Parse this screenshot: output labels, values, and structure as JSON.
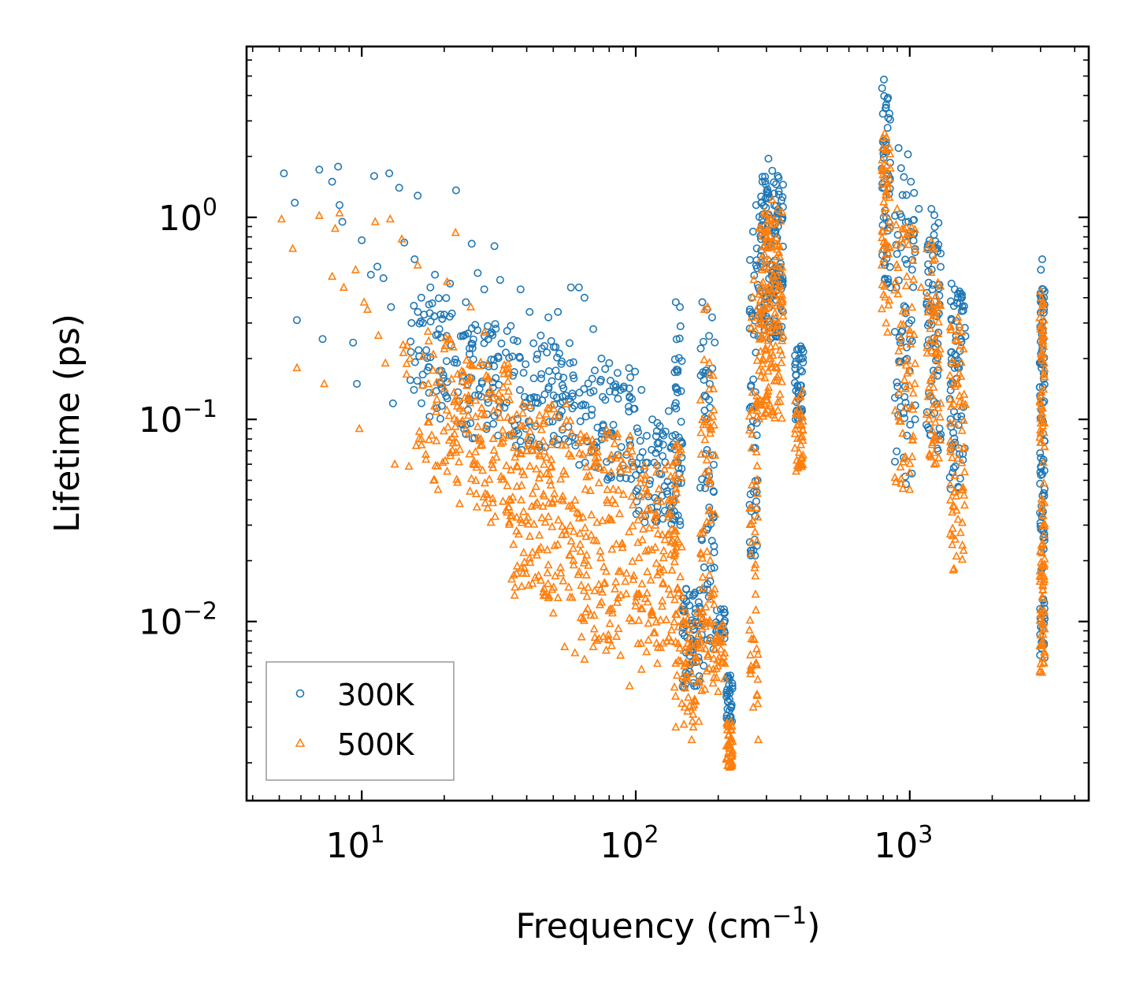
{
  "chart_data": {
    "type": "scatter",
    "title": "",
    "xlabel": "Frequency (cm",
    "xlabel_sup": "−1",
    "xlabel_end": ")",
    "ylabel": "Lifetime (ps)",
    "xscale": "log",
    "yscale": "log",
    "xlim": [
      3.8,
      4500
    ],
    "ylim": [
      0.0013,
      7.0
    ],
    "x_ticks": [
      {
        "value": 10,
        "base": "10",
        "exp": "1"
      },
      {
        "value": 100,
        "base": "10",
        "exp": "2"
      },
      {
        "value": 1000,
        "base": "10",
        "exp": "3"
      }
    ],
    "y_ticks": [
      {
        "value": 1,
        "base": "10",
        "exp": "0"
      },
      {
        "value": 0.1,
        "base": "10",
        "exp": "−1"
      },
      {
        "value": 0.01,
        "base": "10",
        "exp": "−2"
      }
    ],
    "legend": {
      "location": "lower-left"
    },
    "series": [
      {
        "name": "300K",
        "marker": "circle",
        "color": "#1f77b4",
        "points": [
          [
            5.2,
            1.65
          ],
          [
            5.7,
            1.18
          ],
          [
            5.8,
            0.31
          ],
          [
            7.0,
            1.72
          ],
          [
            7.2,
            0.25
          ],
          [
            7.8,
            1.5
          ],
          [
            8.2,
            1.78
          ],
          [
            8.3,
            1.15
          ],
          [
            8.5,
            0.95
          ],
          [
            9.3,
            0.24
          ],
          [
            9.6,
            0.15
          ],
          [
            10.0,
            0.77
          ],
          [
            10.8,
            0.52
          ],
          [
            11.1,
            1.6
          ],
          [
            11.4,
            0.57
          ],
          [
            12.0,
            0.5
          ],
          [
            12.6,
            1.65
          ],
          [
            12.8,
            0.36
          ],
          [
            13.0,
            0.12
          ],
          [
            13.7,
            1.4
          ],
          [
            14.3,
            0.75
          ],
          [
            15.2,
            0.3
          ],
          [
            15.6,
            0.62
          ],
          [
            16.0,
            1.28
          ],
          [
            16.5,
            0.4
          ],
          [
            17.2,
            0.22
          ],
          [
            17.8,
            0.45
          ],
          [
            18.5,
            0.52
          ],
          [
            19.2,
            0.28
          ],
          [
            20.0,
            0.33
          ],
          [
            21.0,
            0.47
          ],
          [
            22.1,
            1.36
          ],
          [
            23.5,
            0.26
          ],
          [
            24.0,
            0.38
          ],
          [
            25.2,
            0.74
          ],
          [
            26.5,
            0.53
          ],
          [
            28.0,
            0.44
          ],
          [
            30.5,
            0.72
          ],
          [
            32.0,
            0.49
          ],
          [
            35.0,
            0.29
          ],
          [
            38.0,
            0.44
          ],
          [
            41.0,
            0.34
          ],
          [
            45.0,
            0.26
          ],
          [
            48.0,
            0.32
          ],
          [
            52.0,
            0.34
          ],
          [
            58.0,
            0.45
          ],
          [
            62.0,
            0.45
          ],
          [
            65.0,
            0.4
          ],
          [
            70.0,
            0.28
          ],
          [
            75.0,
            0.2
          ],
          [
            80.0,
            0.19
          ],
          [
            88.0,
            0.14
          ],
          [
            95.0,
            0.13
          ],
          [
            105.0,
            0.14
          ],
          [
            115.0,
            0.1
          ],
          [
            125.0,
            0.085
          ],
          [
            132.0,
            0.11
          ],
          [
            140.0,
            0.38
          ],
          [
            145.0,
            0.36
          ],
          [
            150.0,
            0.013
          ],
          [
            157.0,
            0.012
          ],
          [
            165.0,
            0.011
          ],
          [
            175.0,
            0.38
          ],
          [
            182.0,
            0.35
          ],
          [
            190.0,
            0.32
          ],
          [
            200.0,
            0.008
          ],
          [
            210.0,
            0.0115
          ],
          [
            220.0,
            0.0052
          ],
          [
            268.0,
            0.85
          ],
          [
            275.0,
            1.15
          ],
          [
            290.0,
            1.5
          ],
          [
            305.0,
            1.95
          ],
          [
            315.0,
            1.7
          ],
          [
            330.0,
            1.6
          ],
          [
            345.0,
            1.45
          ],
          [
            400.0,
            0.23
          ],
          [
            805.0,
            4.8
          ],
          [
            820.0,
            3.6
          ],
          [
            835.0,
            3.1
          ],
          [
            850.0,
            0.45
          ],
          [
            910.0,
            2.2
          ],
          [
            930.0,
            1.75
          ],
          [
            985.0,
            2.05
          ],
          [
            1010.0,
            1.5
          ],
          [
            1080.0,
            1.1
          ],
          [
            1200.0,
            1.1
          ],
          [
            1225.0,
            0.82
          ],
          [
            1240.0,
            0.7
          ],
          [
            1420.0,
            0.47
          ],
          [
            1460.0,
            0.44
          ],
          [
            1520.0,
            0.43
          ],
          [
            1550.0,
            0.4
          ],
          [
            3010.0,
            0.55
          ],
          [
            3045.0,
            0.62
          ],
          [
            3070.0,
            0.44
          ],
          [
            3090.0,
            0.35
          ]
        ],
        "bands": [
          {
            "x": [
              15,
              22
            ],
            "y": [
              0.1,
              0.4
            ],
            "n": 60
          },
          {
            "x": [
              22,
              35
            ],
            "y": [
              0.08,
              0.3
            ],
            "n": 80
          },
          {
            "x": [
              35,
              60
            ],
            "y": [
              0.07,
              0.25
            ],
            "n": 100
          },
          {
            "x": [
              60,
              100
            ],
            "y": [
              0.05,
              0.18
            ],
            "n": 80
          },
          {
            "x": [
              100,
              140
            ],
            "y": [
              0.03,
              0.1
            ],
            "n": 70
          },
          {
            "x": [
              138,
              148
            ],
            "y": [
              0.03,
              0.32
            ],
            "n": 40
          },
          {
            "x": [
              148,
              172
            ],
            "y": [
              0.0045,
              0.015
            ],
            "n": 60
          },
          {
            "x": [
              172,
              195
            ],
            "y": [
              0.006,
              0.3
            ],
            "n": 60
          },
          {
            "x": [
              195,
              212
            ],
            "y": [
              0.008,
              0.012
            ],
            "n": 20
          },
          {
            "x": [
              214,
              226
            ],
            "y": [
              0.0032,
              0.0055
            ],
            "n": 30
          },
          {
            "x": [
              260,
              280
            ],
            "y": [
              0.02,
              0.75
            ],
            "n": 50
          },
          {
            "x": [
              280,
              345
            ],
            "y": [
              0.25,
              1.6
            ],
            "n": 150
          },
          {
            "x": [
              380,
              410
            ],
            "y": [
              0.1,
              0.23
            ],
            "n": 40
          },
          {
            "x": [
              790,
              850
            ],
            "y": [
              0.45,
              4.5
            ],
            "n": 50
          },
          {
            "x": [
              880,
              1050
            ],
            "y": [
              0.045,
              1.6
            ],
            "n": 70
          },
          {
            "x": [
              1150,
              1300
            ],
            "y": [
              0.065,
              1.05
            ],
            "n": 70
          },
          {
            "x": [
              1400,
              1600
            ],
            "y": [
              0.045,
              0.42
            ],
            "n": 70
          },
          {
            "x": [
              2980,
              3110
            ],
            "y": [
              0.0065,
              0.45
            ],
            "n": 110
          }
        ]
      },
      {
        "name": "500K",
        "marker": "triangle",
        "color": "#ff7f0e",
        "points": [
          [
            5.1,
            0.98
          ],
          [
            5.6,
            0.7
          ],
          [
            5.8,
            0.18
          ],
          [
            7.0,
            1.02
          ],
          [
            7.3,
            0.15
          ],
          [
            7.8,
            0.51
          ],
          [
            8.0,
            0.88
          ],
          [
            8.3,
            1.05
          ],
          [
            8.6,
            0.45
          ],
          [
            9.5,
            0.55
          ],
          [
            9.8,
            0.09
          ],
          [
            10.2,
            0.38
          ],
          [
            10.5,
            0.35
          ],
          [
            11.2,
            0.95
          ],
          [
            11.5,
            0.26
          ],
          [
            12.2,
            0.19
          ],
          [
            12.7,
            0.98
          ],
          [
            13.2,
            0.06
          ],
          [
            14.0,
            0.78
          ],
          [
            15.0,
            0.2
          ],
          [
            16.0,
            0.58
          ],
          [
            16.5,
            0.08
          ],
          [
            17.5,
            0.15
          ],
          [
            18.3,
            0.05
          ],
          [
            19.0,
            0.045
          ],
          [
            20.5,
            0.48
          ],
          [
            22.0,
            0.84
          ],
          [
            23.5,
            0.11
          ],
          [
            25.0,
            0.36
          ],
          [
            28.0,
            0.27
          ],
          [
            31.0,
            0.065
          ],
          [
            34.0,
            0.047
          ],
          [
            38.0,
            0.032
          ],
          [
            42.0,
            0.022
          ],
          [
            46.0,
            0.014
          ],
          [
            50.0,
            0.011
          ],
          [
            55.0,
            0.0075
          ],
          [
            60.0,
            0.007
          ],
          [
            65.0,
            0.0065
          ],
          [
            70.0,
            0.0075
          ],
          [
            78.0,
            0.0072
          ],
          [
            88.0,
            0.0068
          ],
          [
            95.0,
            0.0048
          ],
          [
            105.0,
            0.0058
          ],
          [
            120.0,
            0.0062
          ],
          [
            130.0,
            0.008
          ],
          [
            140.0,
            0.003
          ],
          [
            150.0,
            0.0031
          ],
          [
            160.0,
            0.0026
          ],
          [
            178.0,
            0.35
          ],
          [
            183.0,
            0.36
          ],
          [
            192.0,
            0.0058
          ],
          [
            200.0,
            0.0045
          ],
          [
            208.0,
            0.0063
          ],
          [
            220.0,
            0.0019
          ],
          [
            265.0,
            0.32
          ],
          [
            280.0,
            0.0026
          ],
          [
            298.0,
            0.85
          ],
          [
            315.0,
            1.22
          ],
          [
            330.0,
            1.1
          ],
          [
            345.0,
            0.26
          ],
          [
            400.0,
            0.06
          ],
          [
            810.0,
            2.6
          ],
          [
            820.0,
            0.3
          ],
          [
            830.0,
            0.27
          ],
          [
            850.0,
            1.75
          ],
          [
            900.0,
            1.1
          ],
          [
            935.0,
            0.78
          ],
          [
            1000.0,
            0.045
          ],
          [
            1010.0,
            0.83
          ],
          [
            1100.0,
            0.45
          ],
          [
            1200.0,
            0.76
          ],
          [
            1230.0,
            0.06
          ],
          [
            1440.0,
            0.018
          ],
          [
            1500.0,
            0.32
          ],
          [
            1560.0,
            0.045
          ],
          [
            3010.0,
            0.43
          ],
          [
            3040.0,
            0.0056
          ],
          [
            3075.0,
            0.38
          ]
        ],
        "bands": [
          {
            "x": [
              14,
              22
            ],
            "y": [
              0.05,
              0.3
            ],
            "n": 60
          },
          {
            "x": [
              22,
              35
            ],
            "y": [
              0.03,
              0.2
            ],
            "n": 120
          },
          {
            "x": [
              35,
              60
            ],
            "y": [
              0.013,
              0.12
            ],
            "n": 170
          },
          {
            "x": [
              60,
              100
            ],
            "y": [
              0.0075,
              0.09
            ],
            "n": 150
          },
          {
            "x": [
              100,
              140
            ],
            "y": [
              0.007,
              0.06
            ],
            "n": 110
          },
          {
            "x": [
              138,
              148
            ],
            "y": [
              0.0035,
              0.08
            ],
            "n": 40
          },
          {
            "x": [
              148,
              172
            ],
            "y": [
              0.003,
              0.012
            ],
            "n": 50
          },
          {
            "x": [
              172,
              195
            ],
            "y": [
              0.0045,
              0.2
            ],
            "n": 80
          },
          {
            "x": [
              195,
              212
            ],
            "y": [
              0.005,
              0.01
            ],
            "n": 25
          },
          {
            "x": [
              214,
              226
            ],
            "y": [
              0.0019,
              0.0032
            ],
            "n": 40
          },
          {
            "x": [
              260,
              280
            ],
            "y": [
              0.003,
              0.5
            ],
            "n": 60
          },
          {
            "x": [
              280,
              345
            ],
            "y": [
              0.1,
              1.1
            ],
            "n": 170
          },
          {
            "x": [
              380,
              410
            ],
            "y": [
              0.055,
              0.14
            ],
            "n": 40
          },
          {
            "x": [
              790,
              850
            ],
            "y": [
              0.35,
              2.5
            ],
            "n": 50
          },
          {
            "x": [
              880,
              1050
            ],
            "y": [
              0.045,
              1.0
            ],
            "n": 70
          },
          {
            "x": [
              1150,
              1300
            ],
            "y": [
              0.06,
              0.7
            ],
            "n": 70
          },
          {
            "x": [
              1400,
              1600
            ],
            "y": [
              0.018,
              0.3
            ],
            "n": 70
          },
          {
            "x": [
              2980,
              3110
            ],
            "y": [
              0.0056,
              0.4
            ],
            "n": 120
          }
        ]
      }
    ]
  }
}
